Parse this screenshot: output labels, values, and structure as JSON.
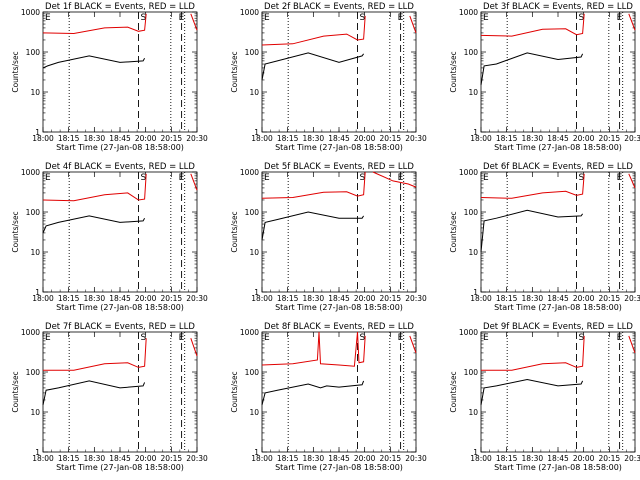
{
  "chart_data": [
    {
      "type": "line",
      "title": "Det 1f BLACK = Events, RED = LLD",
      "xlabel": "Start Time (27-Jan-08 18:58:00)",
      "ylabel": "Counts/sec",
      "x_ticks": [
        "18:00",
        "18:15",
        "18:30",
        "18:45",
        "20:00",
        "20:15",
        "20:30"
      ],
      "y_ticks": [
        "1",
        "10",
        "100",
        "1000"
      ],
      "ylim": [
        1,
        1000
      ],
      "log_y": true,
      "grid": false,
      "saa_markers": [
        "S",
        "E"
      ],
      "series": [
        {
          "color": "#000000",
          "x": [
            0.0,
            0.03,
            0.1,
            0.3,
            0.5,
            0.65,
            0.66
          ],
          "y": [
            40,
            45,
            55,
            80,
            55,
            60,
            70
          ]
        },
        {
          "color": "#e00000",
          "x": [
            0.0,
            0.2,
            0.4,
            0.55,
            0.62,
            0.66,
            0.67
          ],
          "y": [
            300,
            290,
            400,
            420,
            330,
            350,
            900
          ]
        },
        {
          "color": "#e00000",
          "x": [
            0.96,
            1.0
          ],
          "y": [
            900,
            350
          ]
        }
      ]
    },
    {
      "type": "line",
      "title": "Det 2f BLACK = Events, RED = LLD",
      "xlabel": "Start Time (27-Jan-08 18:58:00)",
      "ylabel": "Counts/sec",
      "x_ticks": [
        "18:00",
        "18:15",
        "18:30",
        "18:45",
        "20:00",
        "20:15",
        "20:30"
      ],
      "y_ticks": [
        "1",
        "10",
        "100",
        "1000"
      ],
      "ylim": [
        1,
        1000
      ],
      "log_y": true,
      "grid": false,
      "saa_markers": [
        "S",
        "E"
      ],
      "series": [
        {
          "color": "#000000",
          "x": [
            0.0,
            0.02,
            0.1,
            0.3,
            0.5,
            0.65,
            0.66
          ],
          "y": [
            20,
            50,
            60,
            95,
            55,
            80,
            90
          ]
        },
        {
          "color": "#e00000",
          "x": [
            0.0,
            0.2,
            0.4,
            0.55,
            0.62,
            0.66,
            0.67
          ],
          "y": [
            150,
            160,
            250,
            280,
            200,
            210,
            800
          ]
        },
        {
          "color": "#e00000",
          "x": [
            0.96,
            1.0
          ],
          "y": [
            800,
            300
          ]
        }
      ]
    },
    {
      "type": "line",
      "title": "Det 3f BLACK = Events, RED = LLD",
      "xlabel": "Start Time (27-Jan-08 18:58:00)",
      "ylabel": "Counts/sec",
      "x_ticks": [
        "18:00",
        "18:15",
        "18:30",
        "18:45",
        "20:00",
        "20:15",
        "20:30"
      ],
      "y_ticks": [
        "1",
        "10",
        "100",
        "1000"
      ],
      "ylim": [
        1,
        1000
      ],
      "log_y": true,
      "grid": false,
      "saa_markers": [
        "S",
        "E"
      ],
      "series": [
        {
          "color": "#000000",
          "x": [
            0.0,
            0.02,
            0.1,
            0.3,
            0.5,
            0.65,
            0.66
          ],
          "y": [
            15,
            45,
            50,
            95,
            65,
            75,
            90
          ]
        },
        {
          "color": "#e00000",
          "x": [
            0.0,
            0.2,
            0.4,
            0.55,
            0.62,
            0.66,
            0.67
          ],
          "y": [
            260,
            250,
            370,
            380,
            270,
            290,
            900
          ]
        },
        {
          "color": "#e00000",
          "x": [
            0.96,
            1.0
          ],
          "y": [
            900,
            350
          ]
        }
      ]
    },
    {
      "type": "line",
      "title": "Det 4f BLACK = Events, RED = LLD",
      "xlabel": "Start Time (27-Jan-08 18:58:00)",
      "ylabel": "Counts/sec",
      "x_ticks": [
        "18:00",
        "18:15",
        "18:30",
        "18:45",
        "20:00",
        "20:15",
        "20:30"
      ],
      "y_ticks": [
        "1",
        "10",
        "100",
        "1000"
      ],
      "ylim": [
        1,
        1000
      ],
      "log_y": true,
      "grid": false,
      "saa_markers": [
        "S",
        "E"
      ],
      "series": [
        {
          "color": "#000000",
          "x": [
            0.0,
            0.02,
            0.1,
            0.3,
            0.5,
            0.65,
            0.66
          ],
          "y": [
            30,
            45,
            55,
            80,
            55,
            60,
            70
          ]
        },
        {
          "color": "#e00000",
          "x": [
            0.0,
            0.2,
            0.4,
            0.55,
            0.62,
            0.66,
            0.67
          ],
          "y": [
            200,
            190,
            270,
            300,
            200,
            210,
            900
          ]
        },
        {
          "color": "#e00000",
          "x": [
            0.96,
            1.0
          ],
          "y": [
            900,
            350
          ]
        }
      ]
    },
    {
      "type": "line",
      "title": "Det 5f BLACK = Events, RED = LLD",
      "xlabel": "Start Time (27-Jan-08 18:58:00)",
      "ylabel": "Counts/sec",
      "x_ticks": [
        "18:00",
        "18:15",
        "18:30",
        "18:45",
        "20:00",
        "20:15",
        "20:30"
      ],
      "y_ticks": [
        "1",
        "10",
        "100",
        "1000"
      ],
      "ylim": [
        1,
        1000
      ],
      "log_y": true,
      "grid": false,
      "saa_markers": [
        "S",
        "E"
      ],
      "series": [
        {
          "color": "#000000",
          "x": [
            0.0,
            0.02,
            0.1,
            0.3,
            0.5,
            0.65,
            0.66
          ],
          "y": [
            20,
            55,
            65,
            100,
            70,
            70,
            80
          ]
        },
        {
          "color": "#e00000",
          "x": [
            0.0,
            0.2,
            0.4,
            0.55,
            0.62,
            0.66,
            0.67
          ],
          "y": [
            220,
            230,
            310,
            320,
            250,
            270,
            1000
          ]
        },
        {
          "color": "#e00000",
          "x": [
            0.72,
            0.85,
            0.95,
            1.0
          ],
          "y": [
            1000,
            600,
            500,
            420
          ]
        }
      ]
    },
    {
      "type": "line",
      "title": "Det 6f BLACK = Events, RED = LLD",
      "xlabel": "Start Time (27-Jan-08 18:58:00)",
      "ylabel": "Counts/sec",
      "x_ticks": [
        "18:00",
        "18:15",
        "18:30",
        "18:45",
        "20:00",
        "20:15",
        "20:30"
      ],
      "y_ticks": [
        "1",
        "10",
        "100",
        "1000"
      ],
      "ylim": [
        1,
        1000
      ],
      "log_y": true,
      "grid": false,
      "saa_markers": [
        "S",
        "E"
      ],
      "series": [
        {
          "color": "#000000",
          "x": [
            0.0,
            0.02,
            0.1,
            0.3,
            0.5,
            0.65,
            0.66
          ],
          "y": [
            10,
            60,
            70,
            110,
            75,
            80,
            90
          ]
        },
        {
          "color": "#e00000",
          "x": [
            0.0,
            0.2,
            0.4,
            0.55,
            0.62,
            0.66,
            0.67
          ],
          "y": [
            230,
            220,
            300,
            330,
            260,
            280,
            900
          ]
        },
        {
          "color": "#e00000",
          "x": [
            0.96,
            1.0
          ],
          "y": [
            900,
            400
          ]
        }
      ]
    },
    {
      "type": "line",
      "title": "Det 7f BLACK = Events, RED = LLD",
      "xlabel": "Start Time (27-Jan-08 18:58:00)",
      "ylabel": "Counts/sec",
      "x_ticks": [
        "18:00",
        "18:15",
        "18:30",
        "18:45",
        "20:00",
        "20:15",
        "20:30"
      ],
      "y_ticks": [
        "1",
        "10",
        "100",
        "1000"
      ],
      "ylim": [
        1,
        1000
      ],
      "log_y": true,
      "grid": false,
      "saa_markers": [
        "S",
        "E"
      ],
      "series": [
        {
          "color": "#000000",
          "x": [
            0.0,
            0.02,
            0.1,
            0.3,
            0.5,
            0.65,
            0.66
          ],
          "y": [
            15,
            35,
            40,
            60,
            40,
            45,
            55
          ]
        },
        {
          "color": "#e00000",
          "x": [
            0.0,
            0.2,
            0.4,
            0.55,
            0.62,
            0.66,
            0.67
          ],
          "y": [
            110,
            110,
            160,
            170,
            130,
            140,
            700
          ]
        },
        {
          "color": "#e00000",
          "x": [
            0.96,
            1.0
          ],
          "y": [
            700,
            250
          ]
        }
      ]
    },
    {
      "type": "line",
      "title": "Det 8f BLACK = Events, RED = LLD",
      "xlabel": "Start Time (27-Jan-08 18:58:00)",
      "ylabel": "Counts/sec",
      "x_ticks": [
        "18:00",
        "18:15",
        "18:30",
        "18:45",
        "20:00",
        "20:15",
        "20:30"
      ],
      "y_ticks": [
        "1",
        "10",
        "100",
        "1000"
      ],
      "ylim": [
        1,
        1000
      ],
      "log_y": true,
      "grid": false,
      "saa_markers": [
        "S",
        "E"
      ],
      "series": [
        {
          "color": "#000000",
          "x": [
            0.0,
            0.02,
            0.1,
            0.3,
            0.38,
            0.42,
            0.5,
            0.65,
            0.66
          ],
          "y": [
            15,
            30,
            35,
            50,
            40,
            45,
            42,
            48,
            60
          ]
        },
        {
          "color": "#e00000",
          "x": [
            0.0,
            0.2,
            0.36,
            0.37,
            0.38,
            0.5,
            0.6,
            0.62,
            0.63,
            0.66,
            0.67
          ],
          "y": [
            150,
            160,
            200,
            1000,
            160,
            150,
            140,
            1000,
            170,
            180,
            800
          ]
        },
        {
          "color": "#e00000",
          "x": [
            0.96,
            1.0
          ],
          "y": [
            800,
            300
          ]
        }
      ]
    },
    {
      "type": "line",
      "title": "Det 9f BLACK = Events, RED = LLD",
      "xlabel": "Start Time (27-Jan-08 18:58:00)",
      "ylabel": "Counts/sec",
      "x_ticks": [
        "18:00",
        "18:15",
        "18:30",
        "18:45",
        "20:00",
        "20:15",
        "20:30"
      ],
      "y_ticks": [
        "1",
        "10",
        "100",
        "1000"
      ],
      "ylim": [
        1,
        1000
      ],
      "log_y": true,
      "grid": false,
      "saa_markers": [
        "S",
        "E"
      ],
      "series": [
        {
          "color": "#000000",
          "x": [
            0.0,
            0.02,
            0.1,
            0.3,
            0.5,
            0.65,
            0.66
          ],
          "y": [
            15,
            40,
            45,
            65,
            45,
            50,
            60
          ]
        },
        {
          "color": "#e00000",
          "x": [
            0.0,
            0.2,
            0.4,
            0.55,
            0.62,
            0.66,
            0.67
          ],
          "y": [
            110,
            110,
            160,
            170,
            130,
            140,
            800
          ]
        },
        {
          "color": "#e00000",
          "x": [
            0.96,
            1.0
          ],
          "y": [
            800,
            300
          ]
        }
      ]
    }
  ]
}
